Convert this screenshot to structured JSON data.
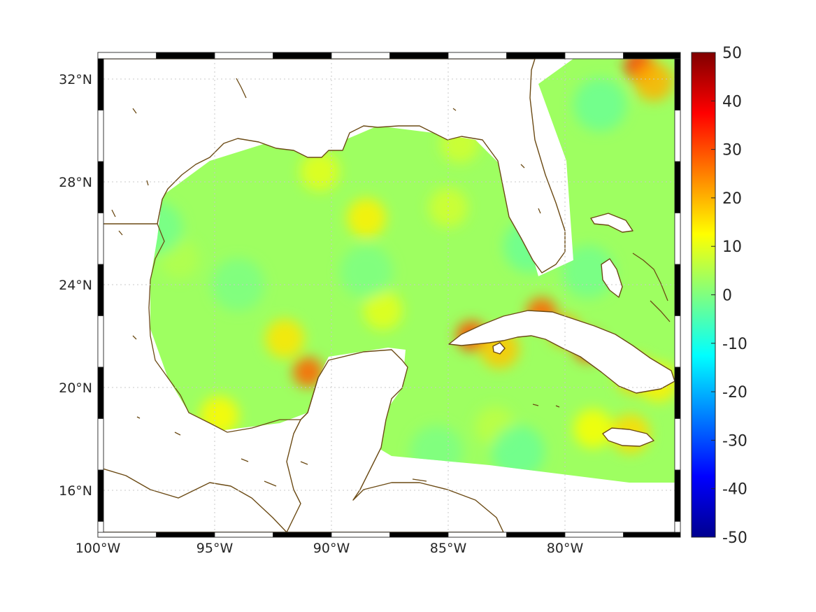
{
  "map": {
    "lon_ticks": [
      {
        "value": -100,
        "label": "100°W"
      },
      {
        "value": -95,
        "label": "95°W"
      },
      {
        "value": -90,
        "label": "90°W"
      },
      {
        "value": -85,
        "label": "85°W"
      },
      {
        "value": -80,
        "label": "80°W"
      }
    ],
    "lat_ticks": [
      {
        "value": 32,
        "label": "32°N"
      },
      {
        "value": 28,
        "label": "28°N"
      },
      {
        "value": 24,
        "label": "24°N"
      },
      {
        "value": 20,
        "label": "20°N"
      },
      {
        "value": 16,
        "label": "16°N"
      }
    ],
    "lon_range": [
      -100,
      -75
    ],
    "lat_range": [
      14.2,
      33.0
    ],
    "grid": true,
    "coastline_color": "#6b4a14",
    "ocean_background_value": 3,
    "hotspots": [
      {
        "lon": -91.0,
        "lat": 20.6,
        "value": 28
      },
      {
        "lon": -92.0,
        "lat": 21.9,
        "value": 15
      },
      {
        "lon": -94.8,
        "lat": 18.9,
        "value": 13
      },
      {
        "lon": -76.8,
        "lat": 32.5,
        "value": 33
      },
      {
        "lon": -76.2,
        "lat": 31.9,
        "value": 20
      },
      {
        "lon": -80.0,
        "lat": 22.2,
        "value": 22
      },
      {
        "lon": -81.0,
        "lat": 22.9,
        "value": 28
      },
      {
        "lon": -79.0,
        "lat": 21.6,
        "value": 30
      },
      {
        "lon": -77.0,
        "lat": 20.5,
        "value": 17
      },
      {
        "lon": -76.0,
        "lat": 20.2,
        "value": 14
      },
      {
        "lon": -77.2,
        "lat": 18.2,
        "value": 16
      },
      {
        "lon": -84.0,
        "lat": 22.0,
        "value": 30
      },
      {
        "lon": -82.8,
        "lat": 21.5,
        "value": 18
      },
      {
        "lon": -88.5,
        "lat": 26.6,
        "value": 14
      },
      {
        "lon": -90.5,
        "lat": 28.4,
        "value": 10
      },
      {
        "lon": -87.8,
        "lat": 23.0,
        "value": 10
      },
      {
        "lon": -84.5,
        "lat": 29.5,
        "value": 8
      },
      {
        "lon": -85.0,
        "lat": 27.0,
        "value": 8
      },
      {
        "lon": -96.5,
        "lat": 25.0,
        "value": 5
      },
      {
        "lon": -83.0,
        "lat": 18.5,
        "value": 6
      },
      {
        "lon": -78.8,
        "lat": 18.4,
        "value": 12
      }
    ],
    "coldspots": [
      {
        "lon": -97.5,
        "lat": 26.2,
        "value": -2
      },
      {
        "lon": -94.0,
        "lat": 24.0,
        "value": -1
      },
      {
        "lon": -88.5,
        "lat": 24.5,
        "value": -1
      },
      {
        "lon": -81.5,
        "lat": 25.5,
        "value": -3
      },
      {
        "lon": -78.5,
        "lat": 31.0,
        "value": -3
      },
      {
        "lon": -82.0,
        "lat": 17.5,
        "value": -3
      },
      {
        "lon": -85.5,
        "lat": 17.5,
        "value": -1
      },
      {
        "lon": -79.0,
        "lat": 24.5,
        "value": -2
      }
    ]
  },
  "colorbar": {
    "min": -50,
    "max": 50,
    "colormap": "jet",
    "ticks": [
      {
        "value": 50,
        "label": "50"
      },
      {
        "value": 40,
        "label": "40"
      },
      {
        "value": 30,
        "label": "30"
      },
      {
        "value": 20,
        "label": "20"
      },
      {
        "value": 10,
        "label": "10"
      },
      {
        "value": 0,
        "label": "0"
      },
      {
        "value": -10,
        "label": "-10"
      },
      {
        "value": -20,
        "label": "-20"
      },
      {
        "value": -30,
        "label": "-30"
      },
      {
        "value": -40,
        "label": "-40"
      },
      {
        "value": -50,
        "label": "-50"
      }
    ]
  }
}
